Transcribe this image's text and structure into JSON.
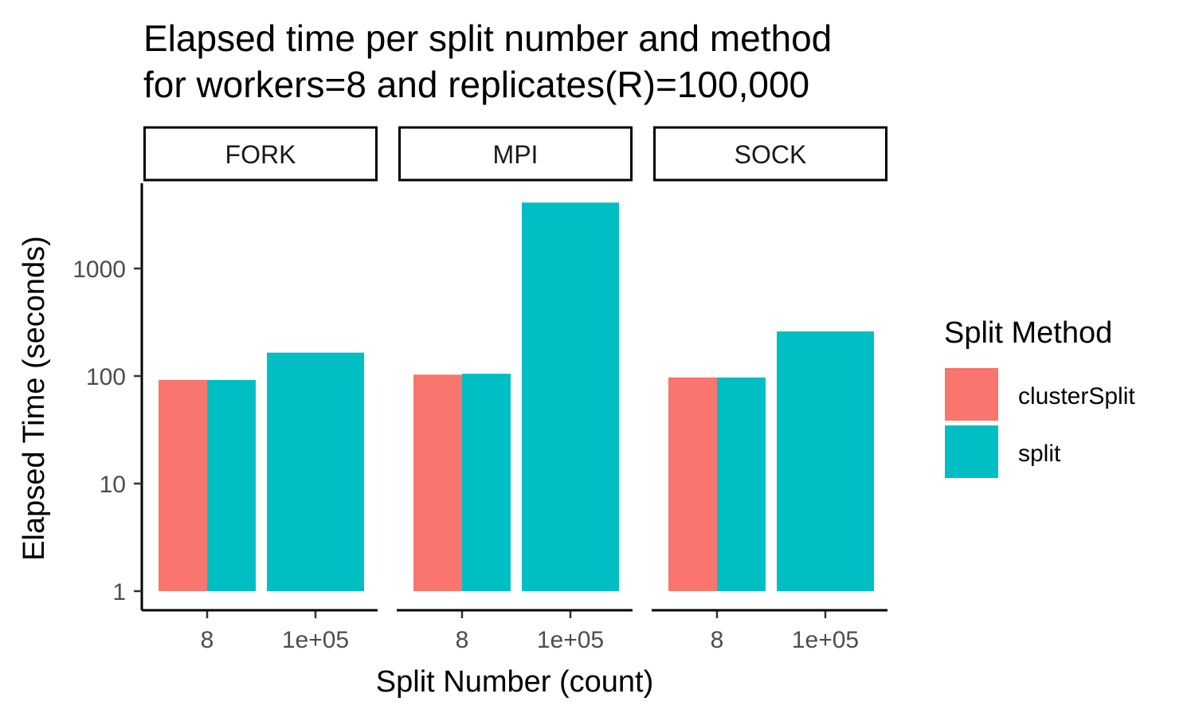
{
  "chart_data": {
    "type": "bar",
    "title_lines": [
      "Elapsed time per split number and method",
      "for workers=8 and replicates(R)=100,000"
    ],
    "xlabel": "Split Number (count)",
    "ylabel": "Elapsed Time (seconds)",
    "y_scale": "log10",
    "ylim": [
      1,
      4000
    ],
    "y_ticks": [
      1,
      10,
      100,
      1000
    ],
    "y_tick_labels": [
      "1",
      "10",
      "100",
      "1000"
    ],
    "x_categories": [
      "8",
      "1e+05"
    ],
    "facets": [
      {
        "label": "FORK",
        "bars": [
          {
            "x": "8",
            "method": "clusterSplit",
            "value": 92
          },
          {
            "x": "8",
            "method": "split",
            "value": 92
          },
          {
            "x": "1e+05",
            "method": "split",
            "value": 165
          }
        ]
      },
      {
        "label": "MPI",
        "bars": [
          {
            "x": "8",
            "method": "clusterSplit",
            "value": 103
          },
          {
            "x": "8",
            "method": "split",
            "value": 105
          },
          {
            "x": "1e+05",
            "method": "split",
            "value": 4100
          }
        ]
      },
      {
        "label": "SOCK",
        "bars": [
          {
            "x": "8",
            "method": "clusterSplit",
            "value": 97
          },
          {
            "x": "8",
            "method": "split",
            "value": 97
          },
          {
            "x": "1e+05",
            "method": "split",
            "value": 260
          }
        ]
      }
    ],
    "legend": {
      "title": "Split Method",
      "placement": "right",
      "entries": [
        {
          "name": "clusterSplit",
          "color": "#F8766D"
        },
        {
          "name": "split",
          "color": "#00BFC4"
        }
      ]
    },
    "grid": false
  }
}
